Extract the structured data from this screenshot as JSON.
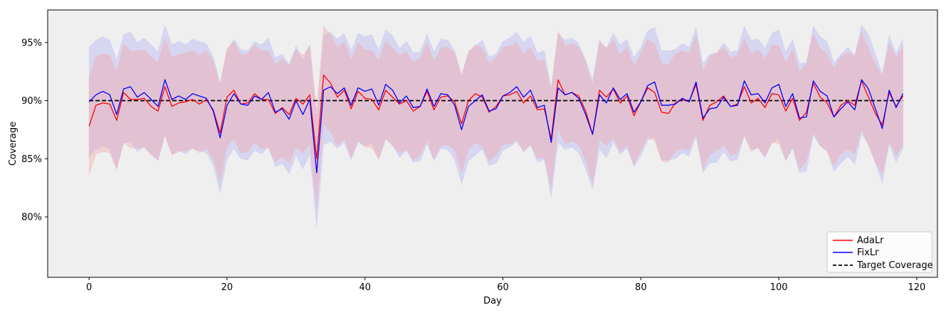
{
  "chart_data": {
    "type": "line",
    "title": "",
    "xlabel": "Day",
    "ylabel": "Coverage",
    "xlim": [
      -6,
      123
    ],
    "ylim": [
      74.8,
      97.8
    ],
    "xticks": [
      0,
      20,
      40,
      60,
      80,
      100,
      120
    ],
    "xtick_labels": [
      "0",
      "20",
      "40",
      "60",
      "80",
      "100",
      "120"
    ],
    "yticks": [
      80,
      85,
      90,
      95
    ],
    "ytick_labels": [
      "80%",
      "85%",
      "90%",
      "95%"
    ],
    "grid": false,
    "legend_position": "lower-right",
    "background_color": "#efefef",
    "series": [
      {
        "name": "AdaLr",
        "color": "#ff0000",
        "band_color": "#f4a6a6",
        "band_halfwidth": 4.2,
        "x": [
          0,
          1,
          2,
          3,
          4,
          5,
          6,
          7,
          8,
          9,
          10,
          11,
          12,
          13,
          14,
          15,
          16,
          17,
          18,
          19,
          20,
          21,
          22,
          23,
          24,
          25,
          26,
          27,
          28,
          29,
          30,
          31,
          32,
          33,
          34,
          35,
          36,
          37,
          38,
          39,
          40,
          41,
          42,
          43,
          44,
          45,
          46,
          47,
          48,
          49,
          50,
          51,
          52,
          53,
          54,
          55,
          56,
          57,
          58,
          59,
          60,
          61,
          62,
          63,
          64,
          65,
          66,
          67,
          68,
          69,
          70,
          71,
          72,
          73,
          74,
          75,
          76,
          77,
          78,
          79,
          80,
          81,
          82,
          83,
          84,
          85,
          86,
          87,
          88,
          89,
          90,
          91,
          92,
          93,
          94,
          95,
          96,
          97,
          98,
          99,
          100,
          101,
          102,
          103,
          104,
          105,
          106,
          107,
          108,
          109,
          110,
          111,
          112,
          113,
          114,
          115,
          116,
          117,
          118
        ],
        "y": [
          87.8,
          89.6,
          89.8,
          89.7,
          88.3,
          90.7,
          90.1,
          90.1,
          90.2,
          89.5,
          89.1,
          91.2,
          89.5,
          89.8,
          89.9,
          90.1,
          89.7,
          90.1,
          89.2,
          87.2,
          90.3,
          90.9,
          89.7,
          89.8,
          90.6,
          90.1,
          90.1,
          88.9,
          89.4,
          88.8,
          90.2,
          89.7,
          90.5,
          85.0,
          92.2,
          91.5,
          90.3,
          90.9,
          89.3,
          90.8,
          90.2,
          90.1,
          89.2,
          90.9,
          90.3,
          89.7,
          90.0,
          89.1,
          89.5,
          90.8,
          89.2,
          90.3,
          90.4,
          89.9,
          88.0,
          90.0,
          90.6,
          90.3,
          89.0,
          89.5,
          90.4,
          90.5,
          90.8,
          89.8,
          90.4,
          89.2,
          89.3,
          86.7,
          91.8,
          90.5,
          90.7,
          90.4,
          89.1,
          87.1,
          90.9,
          90.3,
          91.0,
          89.8,
          90.4,
          88.7,
          89.9,
          91.1,
          90.7,
          89.0,
          88.9,
          89.8,
          90.1,
          89.9,
          91.4,
          88.3,
          89.6,
          89.9,
          90.4,
          89.5,
          89.7,
          91.2,
          89.8,
          90.2,
          89.4,
          90.6,
          90.5,
          89.1,
          90.2,
          88.3,
          89.0,
          91.5,
          90.3,
          89.8,
          88.6,
          89.6,
          90.0,
          89.6,
          91.7,
          90.3,
          88.9,
          87.9,
          90.7,
          89.5,
          90.4
        ]
      },
      {
        "name": "FixLr",
        "color": "#0000ff",
        "band_color": "#b8b8f2",
        "band_halfwidth": 4.7,
        "x": [
          0,
          1,
          2,
          3,
          4,
          5,
          6,
          7,
          8,
          9,
          10,
          11,
          12,
          13,
          14,
          15,
          16,
          17,
          18,
          19,
          20,
          21,
          22,
          23,
          24,
          25,
          26,
          27,
          28,
          29,
          30,
          31,
          32,
          33,
          34,
          35,
          36,
          37,
          38,
          39,
          40,
          41,
          42,
          43,
          44,
          45,
          46,
          47,
          48,
          49,
          50,
          51,
          52,
          53,
          54,
          55,
          56,
          57,
          58,
          59,
          60,
          61,
          62,
          63,
          64,
          65,
          66,
          67,
          68,
          69,
          70,
          71,
          72,
          73,
          74,
          75,
          76,
          77,
          78,
          79,
          80,
          81,
          82,
          83,
          84,
          85,
          86,
          87,
          88,
          89,
          90,
          91,
          92,
          93,
          94,
          95,
          96,
          97,
          98,
          99,
          100,
          101,
          102,
          103,
          104,
          105,
          106,
          107,
          108,
          109,
          110,
          111,
          112,
          113,
          114,
          115,
          116,
          117,
          118
        ],
        "y": [
          89.9,
          90.5,
          90.8,
          90.5,
          88.8,
          91.0,
          91.2,
          90.3,
          90.7,
          90.1,
          89.5,
          91.8,
          90.1,
          90.4,
          90.1,
          90.6,
          90.4,
          90.2,
          89.1,
          86.8,
          89.6,
          90.6,
          89.7,
          89.6,
          90.4,
          90.1,
          90.7,
          89.0,
          89.3,
          88.4,
          90.0,
          88.8,
          90.1,
          83.8,
          90.9,
          91.2,
          90.6,
          91.1,
          89.6,
          91.1,
          90.8,
          91.0,
          89.6,
          91.4,
          90.9,
          89.8,
          90.4,
          89.4,
          89.5,
          91.0,
          89.5,
          90.6,
          90.5,
          89.6,
          87.5,
          89.5,
          90.0,
          90.5,
          89.1,
          89.3,
          90.4,
          90.7,
          91.2,
          90.3,
          90.9,
          89.4,
          89.6,
          86.4,
          91.1,
          90.5,
          90.7,
          90.2,
          88.8,
          87.1,
          90.5,
          89.8,
          91.1,
          90.1,
          90.6,
          89.0,
          89.9,
          91.3,
          91.6,
          89.6,
          89.6,
          89.7,
          90.2,
          89.9,
          91.6,
          88.5,
          89.3,
          89.4,
          90.3,
          89.5,
          89.6,
          91.7,
          90.5,
          90.6,
          89.8,
          91.1,
          91.4,
          89.5,
          90.6,
          88.5,
          88.6,
          91.7,
          90.8,
          90.4,
          88.6,
          89.3,
          89.9,
          89.2,
          91.8,
          91.0,
          89.3,
          87.6,
          90.9,
          89.4,
          90.6
        ]
      },
      {
        "name": "Target Coverage",
        "color": "#000000",
        "dashed": true,
        "x": [
          0,
          118
        ],
        "y": [
          90,
          90
        ]
      }
    ]
  }
}
